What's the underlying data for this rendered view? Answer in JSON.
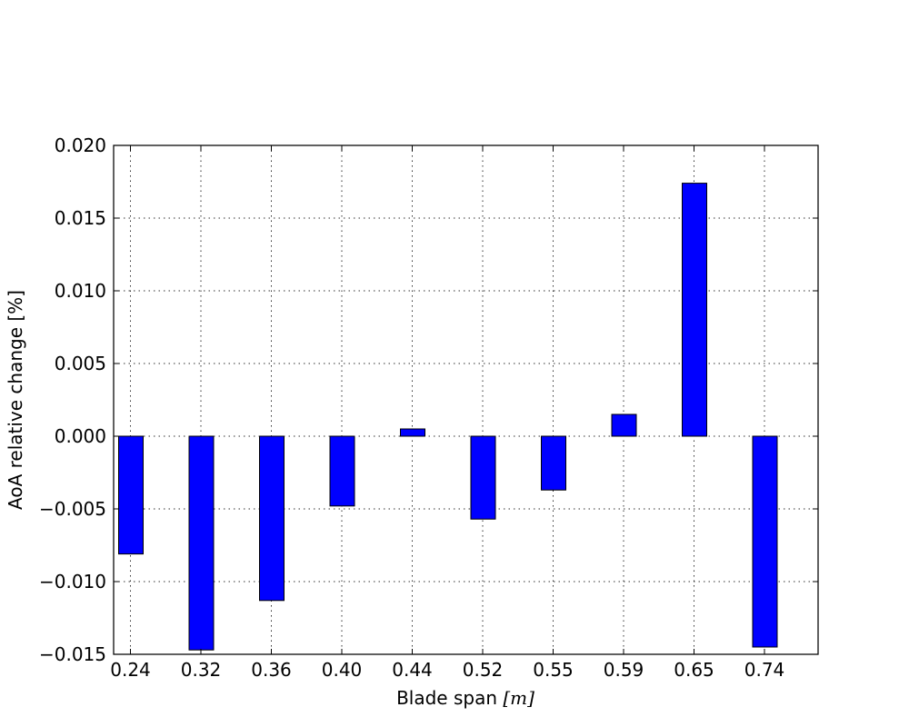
{
  "chart_data": {
    "type": "bar",
    "title": "",
    "xlabel_text": "Blade span ",
    "xlabel_unit": "[m]",
    "ylabel": "AoA relative change [%]",
    "categories": [
      "0.24",
      "0.32",
      "0.36",
      "0.40",
      "0.44",
      "0.52",
      "0.55",
      "0.59",
      "0.65",
      "0.74"
    ],
    "values": [
      -0.0081,
      -0.0147,
      -0.0113,
      -0.0048,
      0.0005,
      -0.0057,
      -0.0037,
      0.0015,
      0.0174,
      -0.0145
    ],
    "ylim": [
      -0.015,
      0.02
    ],
    "yticks": [
      "0.020",
      "0.015",
      "0.010",
      "0.005",
      "0.000",
      "−0.005",
      "−0.010",
      "−0.015"
    ],
    "ytick_values": [
      0.02,
      0.015,
      0.01,
      0.005,
      0.0,
      -0.005,
      -0.01,
      -0.015
    ],
    "grid": true,
    "bar_color": "#0000ff"
  }
}
